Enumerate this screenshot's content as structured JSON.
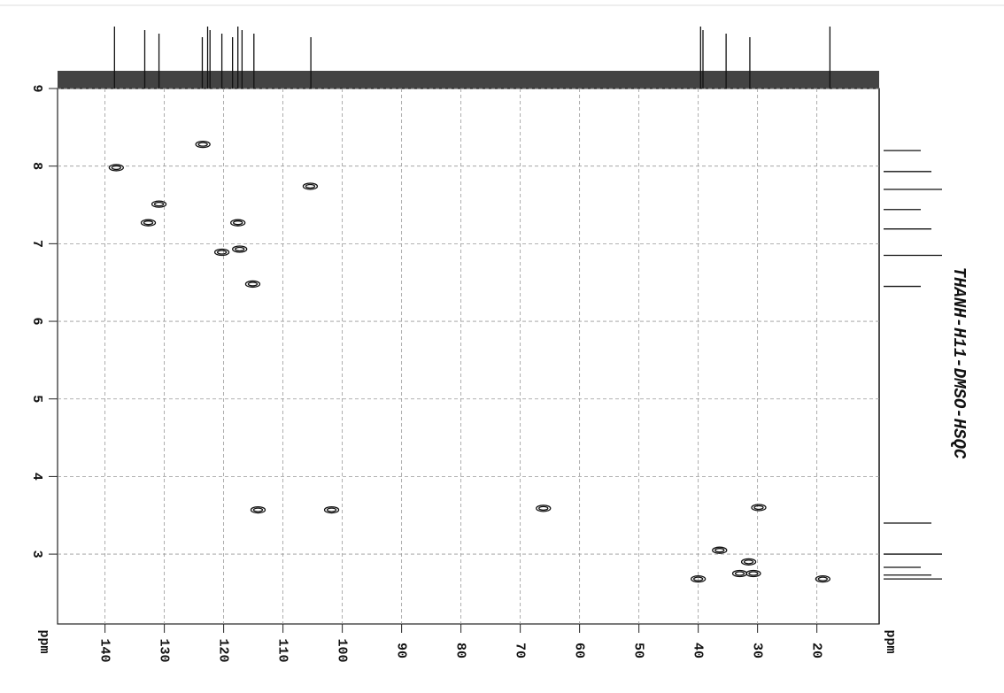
{
  "chart_data": {
    "type": "scatter",
    "title": "THANH-H11-DMSO-HSQC",
    "x_label": "ppm",
    "y_label": "ppm",
    "xlim": [
      148,
      9.5
    ],
    "ylim": [
      9,
      2.1
    ],
    "xticks": [
      140,
      130,
      120,
      110,
      100,
      90,
      80,
      70,
      60,
      50,
      40,
      30,
      20
    ],
    "yticks": [
      9,
      8,
      7,
      6,
      5,
      4,
      3
    ],
    "grid": true,
    "x": [
      138.1,
      123.5,
      130.9,
      132.7,
      105.4,
      117.6,
      120.3,
      117.3,
      115.1,
      114.2,
      101.8,
      66.1,
      29.8,
      36.4,
      31.5,
      33.0,
      40.0,
      19.0,
      30.7
    ],
    "values": [
      7.98,
      8.28,
      7.51,
      7.27,
      7.74,
      7.27,
      6.89,
      6.93,
      6.48,
      3.57,
      3.57,
      3.59,
      3.6,
      3.05,
      2.9,
      2.75,
      2.68,
      2.68,
      2.75
    ],
    "x_projection_peaks": [
      138.4,
      133.3,
      130.9,
      123.6,
      122.7,
      122.3,
      120.3,
      118.5,
      117.6,
      116.9,
      114.9,
      105.3,
      39.6,
      39.2,
      35.3,
      31.3,
      17.8
    ],
    "y_projection_peaks": [
      8.2,
      7.93,
      7.7,
      7.44,
      7.19,
      6.85,
      6.45,
      3.4,
      3.0,
      2.83,
      2.73,
      2.68
    ]
  }
}
